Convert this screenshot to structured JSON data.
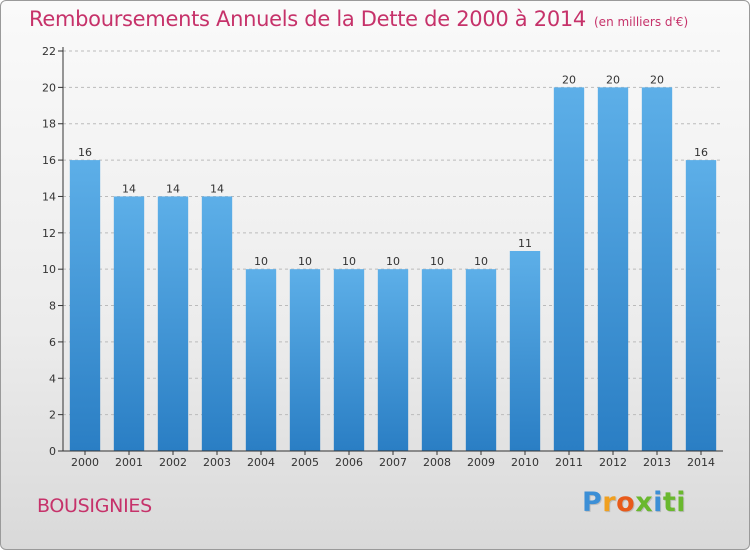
{
  "chart_data": {
    "type": "bar",
    "title": "Remboursements Annuels de la Dette de 2000 à 2014",
    "unit": "(en milliers d'€)",
    "xlabel": "",
    "ylabel": "",
    "categories": [
      "2000",
      "2001",
      "2002",
      "2003",
      "2004",
      "2005",
      "2006",
      "2007",
      "2008",
      "2009",
      "2010",
      "2011",
      "2012",
      "2013",
      "2014"
    ],
    "values": [
      16,
      14,
      14,
      14,
      10,
      10,
      10,
      10,
      10,
      10,
      11,
      20,
      20,
      20,
      16
    ],
    "ylim": [
      0,
      22
    ],
    "yticks": [
      0,
      2,
      4,
      6,
      8,
      10,
      12,
      14,
      16,
      18,
      20,
      22
    ],
    "grid": "horizontal dashed",
    "bar_color_top": "#5dafe8",
    "bar_color_bottom": "#2a7ec4"
  },
  "commune": "BOUSIGNIES",
  "logo": {
    "letters": [
      "P",
      "r",
      "o",
      "x",
      "i",
      "ti"
    ]
  },
  "colors": {
    "title": "#c6326a",
    "axis": "#333333",
    "grid": "#bbbbbb"
  }
}
